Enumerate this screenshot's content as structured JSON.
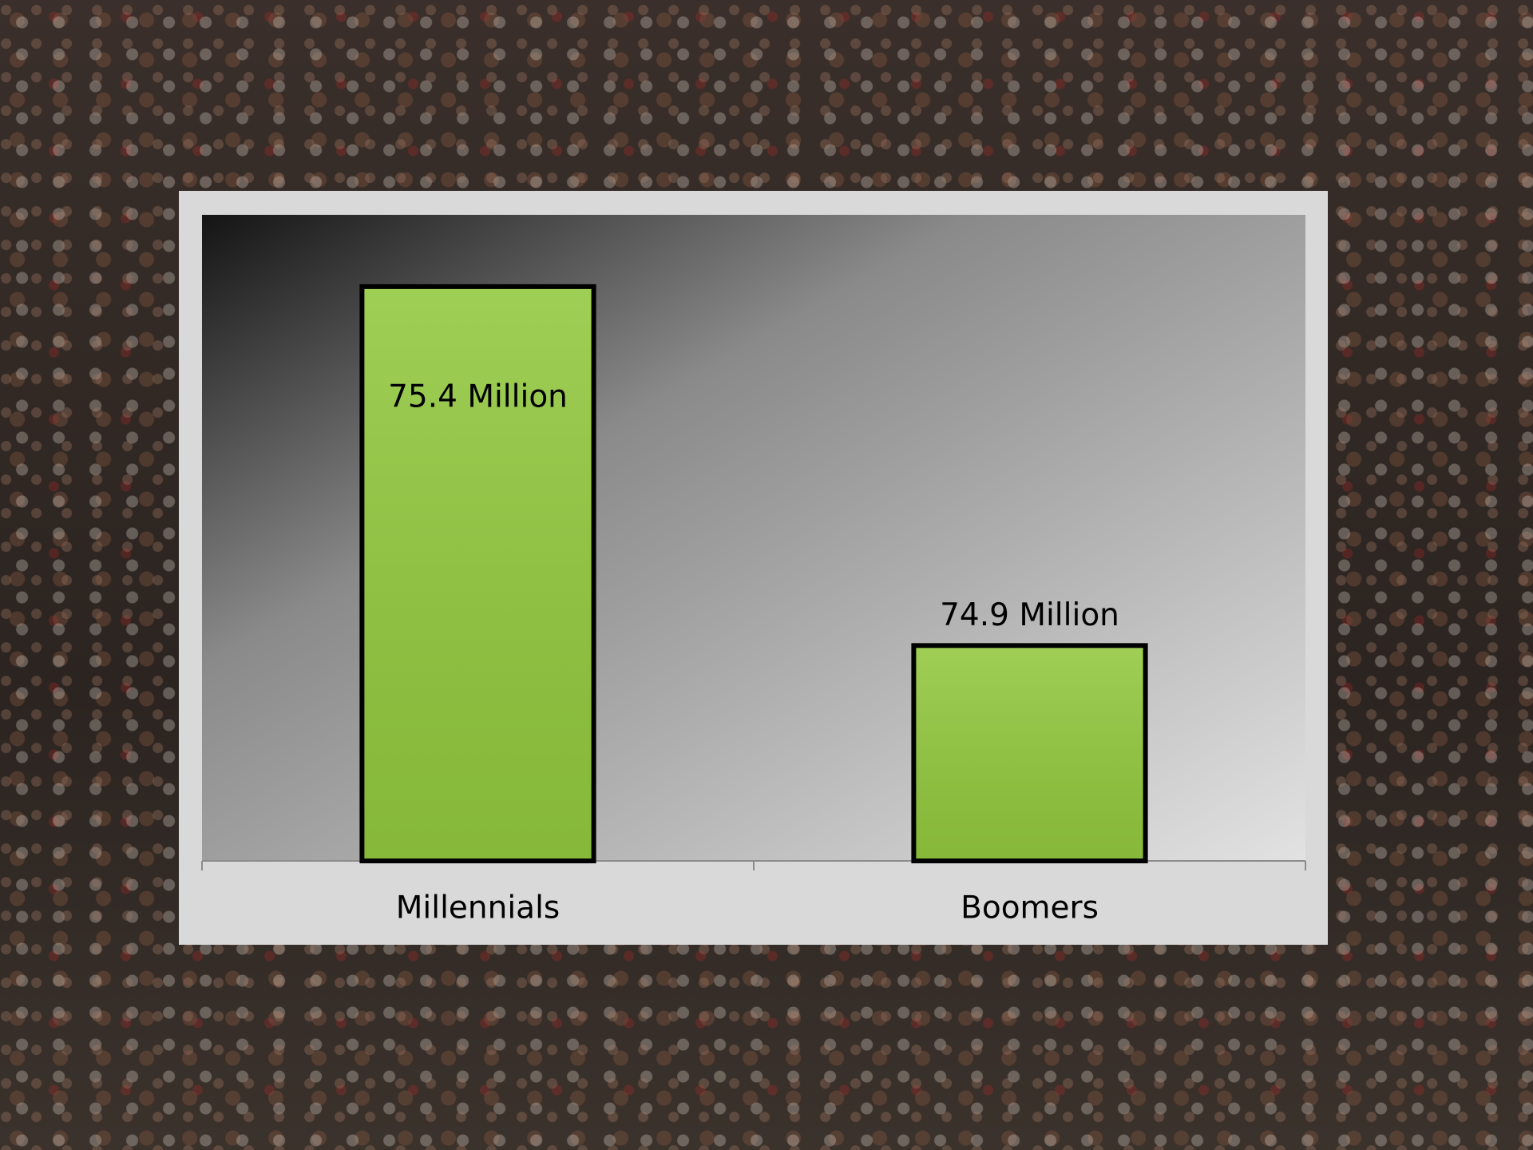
{
  "chart_data": {
    "type": "bar",
    "categories": [
      "Millennials",
      "Boomers"
    ],
    "values": [
      75.4,
      74.9
    ],
    "value_labels": [
      "75.4 Million",
      "74.9 Million"
    ],
    "color": "#92c83e",
    "ylim": [
      74.6,
      75.5
    ]
  }
}
